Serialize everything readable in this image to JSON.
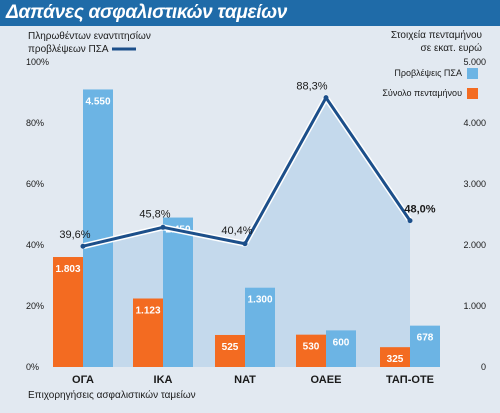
{
  "title": "Δαπάνες ασφαλιστικών ταμείων",
  "left_note": {
    "line1": "Πληρωθέντων εναντι­τ­ησίων",
    "line2": "προβλέψεων ΠΣΑ"
  },
  "right_note": {
    "line1": "Στοιχεία πενταμήνου",
    "line2": "σε εκατ. ευρώ"
  },
  "footnote": "Επιχορηγήσεις ασφαλιστικών ταμείων",
  "colors": {
    "blue_bar": "#6cb4e4",
    "orange_bar": "#f36b21",
    "line": "#1c4f8a",
    "area": "#b9d3ea",
    "title_bg": "#1f6ba8"
  },
  "chart_data": {
    "type": "bar",
    "categories": [
      "ΟΓΑ",
      "ΙΚΑ",
      "ΝΑΤ",
      "ΟΑΕΕ",
      "ΤΑΠ-ΟΤΕ"
    ],
    "series": [
      {
        "name": "Σύνολο πενταμήνου",
        "values": [
          1803,
          1123,
          525,
          530,
          325
        ],
        "labels": [
          "1.803",
          "1.123",
          "525",
          "530",
          "325"
        ]
      },
      {
        "name": "Προβλέψεις ΠΣΑ",
        "values": [
          4550,
          2450,
          1300,
          600,
          678
        ],
        "labels": [
          "4.550",
          "2.450",
          "1.300",
          "600",
          "678"
        ]
      }
    ],
    "line_series": {
      "name": "Πληρωθέντων εναντι­τ­ησίων προβλέψεων ΠΣΑ",
      "values": [
        39.6,
        45.8,
        40.4,
        88.3,
        48.0
      ],
      "labels": [
        "39,6%",
        "45,8%",
        "40,4%",
        "88,3%",
        "48,0%"
      ]
    },
    "y_left": {
      "ticks": [
        "0%",
        "20%",
        "40%",
        "60%",
        "80%",
        "100%"
      ],
      "ylim": [
        0,
        100
      ]
    },
    "y_right": {
      "ticks": [
        "0",
        "1.000",
        "2.000",
        "3.000",
        "4.000",
        "5.000"
      ],
      "ylim": [
        0,
        5000
      ]
    },
    "legend": [
      "Προβλέψεις ΠΣΑ",
      "Σύνολο πενταμήνου"
    ],
    "legend_position": "top-right"
  }
}
